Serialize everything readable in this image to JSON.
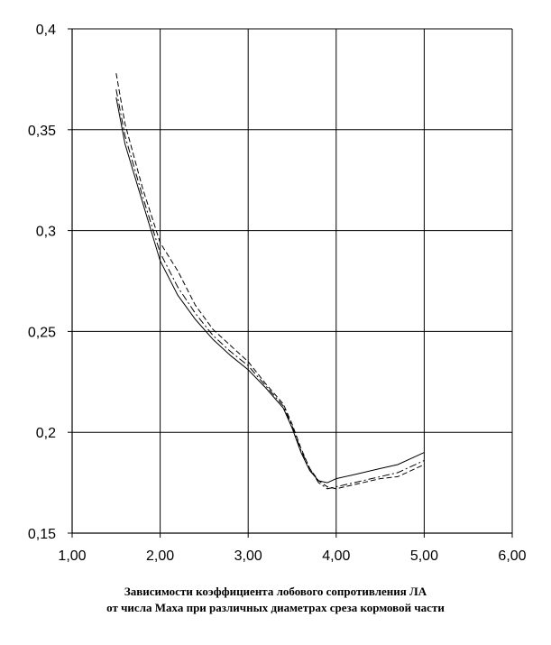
{
  "chart_data": {
    "type": "line",
    "title": "",
    "xlabel": "",
    "ylabel": "",
    "xlim": [
      1.0,
      6.0
    ],
    "ylim": [
      0.15,
      0.4
    ],
    "x_ticks": [
      "1,00",
      "2,00",
      "3,00",
      "4,00",
      "5,00",
      "6,00"
    ],
    "y_ticks": [
      "0,15",
      "0,2",
      "0,25",
      "0,3",
      "0,35",
      "0,4"
    ],
    "grid": true,
    "legend": "none",
    "series": [
      {
        "style": "solid",
        "x": [
          1.5,
          1.6,
          1.8,
          2.0,
          2.2,
          2.4,
          2.6,
          2.8,
          3.0,
          3.2,
          3.4,
          3.5,
          3.6,
          3.7,
          3.8,
          3.9,
          4.0,
          4.2,
          4.5,
          4.7,
          5.0
        ],
        "y": [
          0.366,
          0.343,
          0.314,
          0.285,
          0.268,
          0.256,
          0.246,
          0.238,
          0.231,
          0.222,
          0.212,
          0.202,
          0.19,
          0.181,
          0.176,
          0.175,
          0.177,
          0.179,
          0.182,
          0.184,
          0.19
        ]
      },
      {
        "style": "dashed",
        "x": [
          1.5,
          1.6,
          1.8,
          2.0,
          2.2,
          2.4,
          2.6,
          2.8,
          3.0,
          3.2,
          3.4,
          3.5,
          3.6,
          3.7,
          3.8,
          3.9,
          4.0,
          4.2,
          4.5,
          4.7,
          5.0
        ],
        "y": [
          0.378,
          0.353,
          0.321,
          0.294,
          0.28,
          0.263,
          0.251,
          0.243,
          0.235,
          0.224,
          0.214,
          0.204,
          0.192,
          0.182,
          0.176,
          0.173,
          0.172,
          0.174,
          0.177,
          0.178,
          0.184
        ]
      },
      {
        "style": "dash-dot",
        "x": [
          1.5,
          1.6,
          1.8,
          2.0,
          2.2,
          2.4,
          2.6,
          2.8,
          3.0,
          3.2,
          3.4,
          3.5,
          3.6,
          3.7,
          3.8,
          3.9,
          4.0,
          4.2,
          4.5,
          4.7,
          5.0
        ],
        "y": [
          0.37,
          0.347,
          0.317,
          0.289,
          0.272,
          0.259,
          0.248,
          0.24,
          0.233,
          0.223,
          0.213,
          0.203,
          0.191,
          0.182,
          0.175,
          0.172,
          0.173,
          0.175,
          0.178,
          0.18,
          0.186
        ]
      }
    ]
  },
  "caption": {
    "line1": "Зависимости коэффициента лобового сопротивления ЛА",
    "line2": "от числа Маха при различных диаметрах среза кормовой части"
  }
}
